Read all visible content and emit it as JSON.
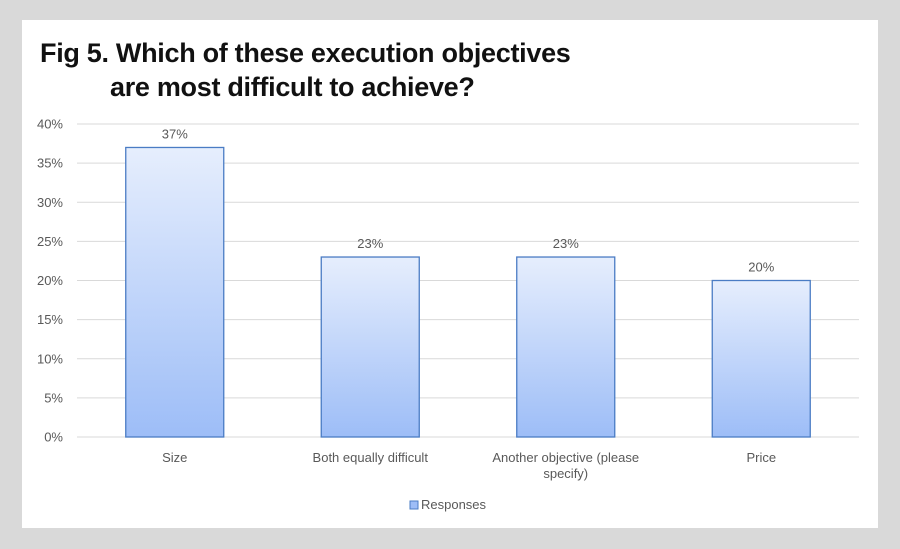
{
  "chart_data": {
    "type": "bar",
    "title_line1": "Fig 5. Which of these execution  objectives",
    "title_line2": "are most difficult to achieve?",
    "categories": [
      [
        "Size"
      ],
      [
        "Both equally difficult"
      ],
      [
        "Another objective (please",
        "specify)"
      ],
      [
        "Price"
      ]
    ],
    "series": [
      {
        "name": "Responses",
        "values": [
          37,
          23,
          23,
          20
        ]
      }
    ],
    "data_labels": [
      "37%",
      "23%",
      "23%",
      "20%"
    ],
    "ylim": [
      0,
      40
    ],
    "y_ticks": [
      0,
      5,
      10,
      15,
      20,
      25,
      30,
      35,
      40
    ],
    "y_tick_labels": [
      "0%",
      "5%",
      "10%",
      "15%",
      "20%",
      "25%",
      "30%",
      "35%",
      "40%"
    ],
    "grid": true,
    "legend_position": "bottom",
    "colors": {
      "bar_top": "#e6eefd",
      "bar_bottom": "#9dbdf7",
      "bar_border": "#4a7cc4",
      "grid": "#d9d9d9",
      "text": "#595959"
    }
  }
}
